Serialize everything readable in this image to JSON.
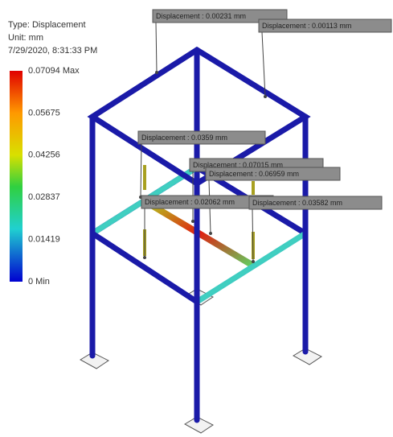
{
  "legend": {
    "type_label": "Type: Displacement",
    "unit_label": "Unit: mm",
    "timestamp": "7/29/2020, 8:31:33 PM",
    "scale_labels": [
      "0.07094 Max",
      "0.05675",
      "0.04256",
      "0.02837",
      "0.01419",
      "0 Min"
    ]
  },
  "probes": [
    "Displacement : 0.00231 mm",
    "Displacement : 0.00113 mm",
    "Displacement : 0.0359 mm",
    "Displacement : 0.07015 mm",
    "Displacement : 0.06959 mm",
    "Displacement : 0.02062 mm",
    "Displacement : 0.03582 mm"
  ]
}
